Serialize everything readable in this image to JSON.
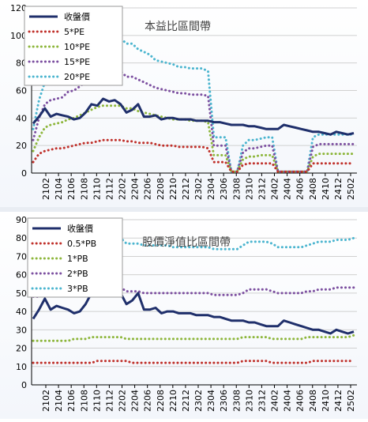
{
  "colors": {
    "price": "#1f2f6b",
    "s1": "#c0312b",
    "s2": "#8db63b",
    "s3": "#7c4fa0",
    "s4": "#4bb5cf",
    "grid": "#d0d0d0",
    "axis": "#000000"
  },
  "chart_data": [
    {
      "type": "line",
      "title": "本益比區間帶",
      "x_ticks": [
        "2102",
        "2104",
        "2106",
        "2108",
        "2110",
        "2112",
        "2202",
        "2204",
        "2206",
        "2208",
        "2210",
        "2212",
        "2302",
        "2304",
        "2306",
        "2308",
        "2310",
        "2312",
        "2402",
        "2404",
        "2406",
        "2408",
        "2410",
        "2412",
        "2502"
      ],
      "ylim": [
        0,
        120
      ],
      "y_ticks": [
        "0",
        "20",
        "40",
        "60",
        "80",
        "100",
        "120"
      ],
      "grid": true,
      "legend": "top-left",
      "series": [
        {
          "name": "收盤價",
          "style": "solid",
          "color_key": "price",
          "values": [
            36,
            41,
            47,
            41,
            43,
            42,
            41,
            39,
            40,
            44,
            50,
            49,
            54,
            52,
            53,
            50,
            44,
            46,
            50,
            41,
            41,
            42,
            39,
            40,
            40,
            39,
            39,
            39,
            38,
            38,
            38,
            37,
            37,
            36,
            35,
            35,
            35,
            34,
            34,
            33,
            32,
            32,
            32,
            35,
            34,
            33,
            32,
            31,
            30,
            30,
            29,
            28,
            30,
            29,
            28,
            29
          ]
        },
        {
          "name": "5*PE",
          "style": "dotted",
          "color_key": "s1",
          "values": [
            8,
            14,
            16,
            17,
            18,
            18,
            19,
            20,
            21,
            22,
            22,
            23,
            24,
            24,
            24,
            24,
            23,
            23,
            22,
            22,
            22,
            21,
            20,
            20,
            20,
            19,
            19,
            19,
            19,
            19,
            18,
            8,
            8,
            8,
            1,
            1,
            6,
            7,
            7,
            7,
            7,
            7,
            1,
            1,
            1,
            1,
            1,
            1,
            7,
            7,
            7,
            7,
            7,
            7,
            7,
            7
          ]
        },
        {
          "name": "10*PE",
          "style": "dotted",
          "color_key": "s2",
          "values": [
            16,
            26,
            33,
            35,
            36,
            37,
            39,
            40,
            42,
            44,
            46,
            48,
            49,
            49,
            49,
            49,
            47,
            47,
            45,
            44,
            43,
            42,
            41,
            40,
            39,
            39,
            39,
            38,
            38,
            38,
            37,
            13,
            13,
            13,
            1,
            1,
            10,
            12,
            12,
            13,
            13,
            13,
            1,
            1,
            1,
            1,
            1,
            1,
            12,
            14,
            14,
            14,
            14,
            14,
            14,
            14
          ]
        },
        {
          "name": "15*PE",
          "style": "dotted",
          "color_key": "s3",
          "values": [
            24,
            40,
            50,
            53,
            54,
            55,
            59,
            60,
            63,
            66,
            69,
            71,
            74,
            74,
            74,
            74,
            70,
            70,
            68,
            66,
            64,
            62,
            61,
            60,
            59,
            58,
            58,
            57,
            57,
            57,
            56,
            20,
            20,
            20,
            1,
            1,
            15,
            18,
            18,
            19,
            20,
            20,
            1,
            1,
            1,
            1,
            1,
            1,
            19,
            21,
            21,
            21,
            21,
            21,
            21,
            21
          ]
        },
        {
          "name": "20*PE",
          "style": "dotted",
          "color_key": "s4",
          "values": [
            32,
            53,
            66,
            70,
            72,
            73,
            78,
            80,
            84,
            88,
            92,
            95,
            98,
            98,
            98,
            98,
            94,
            94,
            90,
            88,
            86,
            82,
            81,
            80,
            79,
            77,
            77,
            76,
            76,
            76,
            74,
            26,
            26,
            26,
            1,
            1,
            20,
            24,
            24,
            25,
            26,
            26,
            1,
            1,
            1,
            1,
            1,
            1,
            26,
            28,
            28,
            28,
            28,
            28,
            28,
            28
          ]
        }
      ]
    },
    {
      "type": "line",
      "title": "股價淨值比區間帶",
      "x_ticks": [
        "2102",
        "2104",
        "2106",
        "2108",
        "2110",
        "2112",
        "2202",
        "2204",
        "2206",
        "2208",
        "2210",
        "2212",
        "2302",
        "2304",
        "2306",
        "2308",
        "2310",
        "2312",
        "2402",
        "2404",
        "2406",
        "2408",
        "2410",
        "2412",
        "2502"
      ],
      "ylim": [
        0,
        90
      ],
      "y_ticks": [
        "0",
        "10",
        "20",
        "30",
        "40",
        "50",
        "60",
        "70",
        "80",
        "90"
      ],
      "grid": true,
      "legend": "top-left",
      "series": [
        {
          "name": "收盤價",
          "style": "solid",
          "color_key": "price",
          "values": [
            36,
            41,
            47,
            41,
            43,
            42,
            41,
            39,
            40,
            44,
            50,
            49,
            54,
            52,
            53,
            50,
            44,
            46,
            50,
            41,
            41,
            42,
            39,
            40,
            40,
            39,
            39,
            39,
            38,
            38,
            38,
            37,
            37,
            36,
            35,
            35,
            35,
            34,
            34,
            33,
            32,
            32,
            32,
            35,
            34,
            33,
            32,
            31,
            30,
            30,
            29,
            28,
            30,
            29,
            28,
            29
          ]
        },
        {
          "name": "0.5*PB",
          "style": "dotted",
          "color_key": "s1",
          "values": [
            12,
            12,
            12,
            12,
            12,
            12,
            12,
            12,
            12,
            12,
            12,
            13,
            13,
            13,
            13,
            13,
            13,
            12,
            12,
            12,
            12,
            12,
            12,
            12,
            12,
            12,
            12,
            12,
            12,
            12,
            12,
            12,
            12,
            12,
            12,
            12,
            13,
            13,
            13,
            13,
            13,
            12,
            12,
            12,
            12,
            12,
            12,
            12,
            13,
            13,
            13,
            13,
            13,
            13,
            13,
            13
          ]
        },
        {
          "name": "1*PB",
          "style": "dotted",
          "color_key": "s2",
          "values": [
            24,
            24,
            24,
            24,
            24,
            24,
            24,
            25,
            25,
            25,
            26,
            26,
            26,
            26,
            26,
            26,
            25,
            25,
            25,
            25,
            25,
            25,
            25,
            25,
            25,
            25,
            25,
            25,
            25,
            25,
            25,
            25,
            25,
            25,
            25,
            25,
            26,
            26,
            26,
            26,
            26,
            25,
            25,
            25,
            25,
            25,
            25,
            26,
            26,
            26,
            26,
            26,
            26,
            26,
            26,
            27
          ]
        },
        {
          "name": "2*PB",
          "style": "dotted",
          "color_key": "s3",
          "values": [
            48,
            48,
            49,
            49,
            49,
            49,
            49,
            50,
            50,
            51,
            52,
            52,
            53,
            53,
            53,
            53,
            51,
            51,
            51,
            50,
            50,
            50,
            50,
            50,
            50,
            50,
            50,
            50,
            50,
            50,
            50,
            49,
            49,
            49,
            49,
            49,
            50,
            52,
            52,
            52,
            52,
            51,
            50,
            50,
            50,
            50,
            50,
            51,
            51,
            52,
            52,
            52,
            53,
            53,
            53,
            53
          ]
        },
        {
          "name": "3*PB",
          "style": "dotted",
          "color_key": "s4",
          "values": [
            72,
            72,
            73,
            73,
            74,
            74,
            74,
            75,
            76,
            77,
            78,
            79,
            80,
            80,
            80,
            80,
            77,
            77,
            77,
            76,
            76,
            76,
            76,
            76,
            75,
            75,
            75,
            75,
            75,
            75,
            75,
            74,
            74,
            74,
            74,
            74,
            76,
            78,
            78,
            78,
            78,
            77,
            75,
            75,
            75,
            75,
            75,
            76,
            77,
            78,
            78,
            78,
            79,
            79,
            79,
            80
          ]
        }
      ]
    }
  ]
}
